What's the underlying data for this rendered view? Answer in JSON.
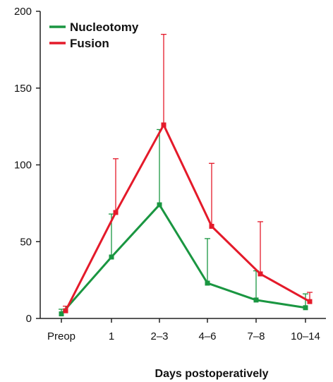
{
  "chart_data": {
    "type": "line",
    "title": "",
    "xlabel": "Days postoperatively",
    "ylabel": "",
    "categories": [
      "Preop",
      "1",
      "2–3",
      "4–6",
      "7–8",
      "10–14"
    ],
    "ylim": [
      0,
      200
    ],
    "yticks": [
      0,
      50,
      100,
      150,
      200
    ],
    "legend_position": "top-left",
    "grid": false,
    "error_bars": "upper only",
    "series": [
      {
        "name": "Nucleotomy",
        "color": "#1a9641",
        "values": [
          3,
          40,
          74,
          23,
          12,
          7
        ],
        "upper": [
          6,
          68,
          123,
          52,
          31,
          16
        ]
      },
      {
        "name": "Fusion",
        "color": "#e41a2a",
        "values": [
          5,
          69,
          126,
          60,
          29,
          11
        ],
        "upper": [
          8,
          104,
          185,
          101,
          63,
          17
        ]
      }
    ]
  }
}
